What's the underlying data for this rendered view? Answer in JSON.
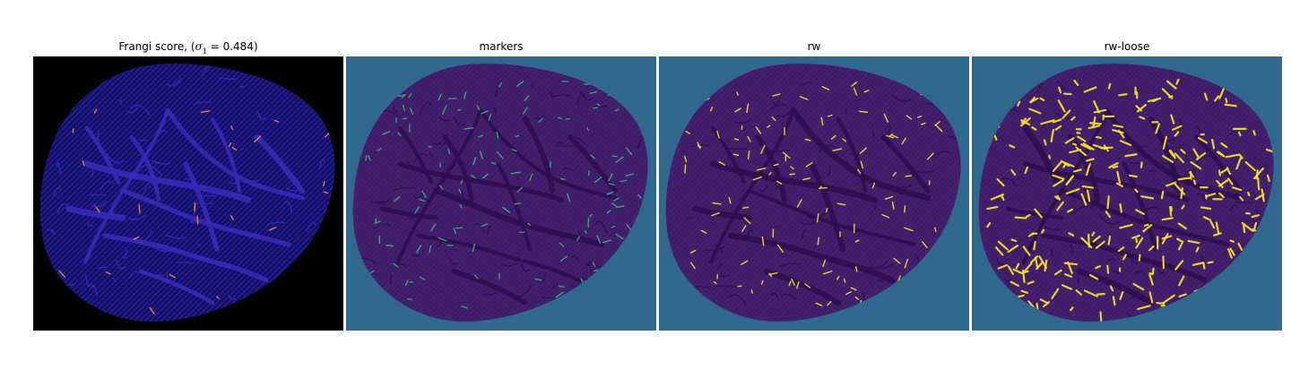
{
  "figure": {
    "panels": [
      {
        "title": "Frangi score, (σ1 = 0.484)",
        "title_parts": {
          "prefix": "Frangi score, (",
          "symbol": "σ",
          "subscript": "1",
          "suffix": " = 0.484)"
        },
        "background_color": "#000000",
        "blob_color": "#1f1a8a",
        "texture_color": "#0b0640",
        "vessel_color": "#3a2ab8",
        "highlight_color": "#ff8a3c",
        "highlight_level": "sparse"
      },
      {
        "title": "markers",
        "background_color": "#31688e",
        "blob_color": "#45206f",
        "texture_color": "#3a1a63",
        "vessel_color": "#2d0e50",
        "highlight_color": "#35b779",
        "highlight_level": "medium"
      },
      {
        "title": "rw",
        "background_color": "#31688e",
        "blob_color": "#45206f",
        "texture_color": "#3a1a63",
        "vessel_color": "#2d0e50",
        "highlight_color": "#fde725",
        "highlight_level": "medium"
      },
      {
        "title": "rw-loose",
        "background_color": "#31688e",
        "blob_color": "#45206f",
        "texture_color": "#3a1a63",
        "vessel_color": "#2d0e50",
        "highlight_color": "#fde725",
        "highlight_level": "dense"
      }
    ]
  }
}
